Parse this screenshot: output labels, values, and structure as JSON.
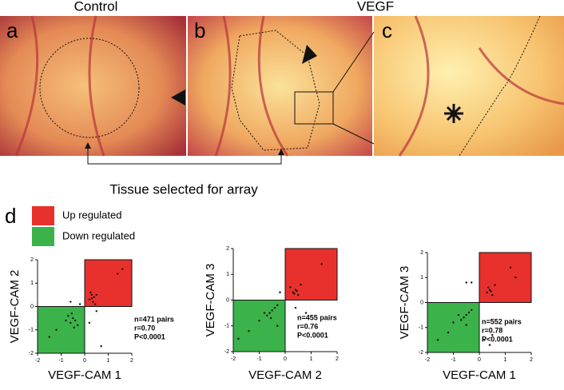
{
  "figure": {
    "panel_labels": [
      "a",
      "b",
      "c",
      "d"
    ],
    "titles": [
      "Control",
      "VEGF"
    ],
    "caption": "Tissue selected for array",
    "legend": [
      {
        "label": "Up regulated",
        "color": "#e8312d"
      },
      {
        "label": "Down regulated",
        "color": "#3cb24a"
      }
    ]
  },
  "chart_data": [
    {
      "type": "scatter",
      "xlabel": "VEGF-CAM 1",
      "ylabel": "VEGF-CAM 2",
      "stats": [
        "n=471 pairs",
        "r=0.70",
        "P<0.0001"
      ],
      "xlim": [
        -2,
        2
      ],
      "ylim": [
        -2,
        2
      ],
      "xticks": [
        -2,
        -1,
        0,
        1,
        2
      ],
      "yticks": [
        -2,
        -1,
        0,
        1,
        2
      ],
      "x": [
        0.2,
        0.3,
        0.4,
        0.35,
        0.25,
        0.5,
        0.45,
        0.3,
        1.4,
        1.6,
        -0.5,
        -0.6,
        -0.4,
        -0.7,
        -0.3,
        -0.8,
        -0.55,
        -0.45,
        -1.2,
        -1.5,
        -0.2,
        0.2,
        0.7,
        -0.6,
        0.5
      ],
      "values": [
        0.3,
        0.5,
        0.4,
        0.2,
        0.6,
        0.5,
        0.1,
        0.35,
        1.4,
        1.6,
        -0.5,
        -0.7,
        -0.6,
        -0.4,
        -0.8,
        -0.6,
        -0.3,
        -0.9,
        -1.0,
        -1.3,
        0.1,
        -0.7,
        -1.7,
        0.2,
        -0.2
      ]
    },
    {
      "type": "scatter",
      "xlabel": "VEGF-CAM 2",
      "ylabel": "VEGF-CAM 3",
      "stats": [
        "n=455 pairs",
        "r=0.76",
        "P<0.0001"
      ],
      "xlim": [
        -2,
        2
      ],
      "ylim": [
        -2,
        2
      ],
      "xticks": [
        -2,
        -1,
        0,
        1,
        2
      ],
      "yticks": [
        -2,
        -1,
        0,
        1,
        2
      ],
      "x": [
        0.3,
        0.4,
        0.5,
        0.2,
        0.35,
        0.45,
        0.6,
        1.4,
        -0.5,
        -0.6,
        -0.4,
        -0.7,
        -0.3,
        -0.8,
        -0.55,
        -1.4,
        -1.8,
        -0.2,
        0.4,
        -0.3,
        0.8,
        -1.0
      ],
      "values": [
        0.3,
        0.4,
        0.2,
        0.5,
        0.25,
        0.35,
        0.6,
        1.4,
        -0.4,
        -0.5,
        -0.3,
        -0.6,
        -0.2,
        -0.5,
        -0.7,
        -1.2,
        -1.5,
        0.3,
        -0.3,
        -1.0,
        -0.5,
        -0.8
      ]
    },
    {
      "type": "scatter",
      "xlabel": "VEGF-CAM 1",
      "ylabel": "VEGF-CAM 3",
      "stats": [
        "n=552 pairs",
        "r=0.78",
        "P<0.0001"
      ],
      "xlim": [
        -2,
        2
      ],
      "ylim": [
        -2,
        2
      ],
      "xticks": [
        -2,
        -1,
        0,
        1,
        2
      ],
      "yticks": [
        -2,
        -1,
        0,
        1,
        2
      ],
      "x": [
        0.3,
        0.4,
        0.5,
        0.35,
        0.45,
        0.6,
        1.2,
        1.4,
        -0.5,
        -0.6,
        -0.4,
        -0.7,
        -0.3,
        -0.8,
        -0.5,
        -1.2,
        -1.6,
        -0.3,
        0.5,
        -0.5,
        0.2,
        0.4,
        -1.0
      ],
      "values": [
        0.4,
        0.5,
        0.3,
        0.6,
        0.45,
        0.7,
        1.4,
        1.0,
        -0.5,
        -0.6,
        -0.4,
        -0.7,
        -0.3,
        -0.5,
        -0.9,
        -1.2,
        -1.5,
        0.8,
        -1.3,
        0.8,
        -1.5,
        -1.7,
        -0.8
      ]
    }
  ]
}
